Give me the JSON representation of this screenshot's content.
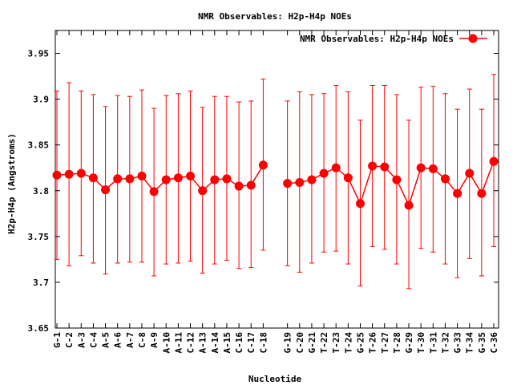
{
  "chart_data": {
    "type": "line",
    "title": "NMR Observables: H2p-H4p NOEs",
    "xlabel": "Nucleotide",
    "ylabel": "H2p-H4p (Angstroms)",
    "ylim": [
      3.65,
      3.975
    ],
    "yticks": [
      "3.65",
      "3.7",
      "3.75",
      "3.8",
      "3.85",
      "3.9",
      "3.95"
    ],
    "grid": false,
    "legend": "top-right",
    "series": [
      {
        "name": "NMR Observables: H2p-H4p NOEs",
        "color": "#ff0000",
        "segments": [
          [
            {
              "label": "G-1",
              "y": 3.817,
              "err_low": 3.725,
              "err_high": 3.909
            },
            {
              "label": "C-2",
              "y": 3.818,
              "err_low": 3.718,
              "err_high": 3.918
            },
            {
              "label": "A-3",
              "y": 3.819,
              "err_low": 3.729,
              "err_high": 3.909
            },
            {
              "label": "C-4",
              "y": 3.814,
              "err_low": 3.721,
              "err_high": 3.905
            },
            {
              "label": "A-5",
              "y": 3.801,
              "err_low": 3.709,
              "err_high": 3.892
            },
            {
              "label": "A-6",
              "y": 3.813,
              "err_low": 3.721,
              "err_high": 3.904
            },
            {
              "label": "A-7",
              "y": 3.813,
              "err_low": 3.722,
              "err_high": 3.903
            },
            {
              "label": "C-8",
              "y": 3.816,
              "err_low": 3.722,
              "err_high": 3.91
            },
            {
              "label": "A-9",
              "y": 3.799,
              "err_low": 3.707,
              "err_high": 3.89
            },
            {
              "label": "A-10",
              "y": 3.812,
              "err_low": 3.72,
              "err_high": 3.904
            },
            {
              "label": "A-11",
              "y": 3.814,
              "err_low": 3.721,
              "err_high": 3.906
            },
            {
              "label": "C-12",
              "y": 3.816,
              "err_low": 3.723,
              "err_high": 3.909
            },
            {
              "label": "A-13",
              "y": 3.8,
              "err_low": 3.71,
              "err_high": 3.891
            },
            {
              "label": "A-14",
              "y": 3.812,
              "err_low": 3.72,
              "err_high": 3.903
            },
            {
              "label": "A-15",
              "y": 3.813,
              "err_low": 3.724,
              "err_high": 3.903
            },
            {
              "label": "C-16",
              "y": 3.805,
              "err_low": 3.715,
              "err_high": 3.897
            },
            {
              "label": "C-17",
              "y": 3.806,
              "err_low": 3.716,
              "err_high": 3.898
            },
            {
              "label": "C-18",
              "y": 3.828,
              "err_low": 3.735,
              "err_high": 3.922
            }
          ],
          [
            {
              "label": "G-19",
              "y": 3.808,
              "err_low": 3.718,
              "err_high": 3.898
            },
            {
              "label": "C-20",
              "y": 3.809,
              "err_low": 3.711,
              "err_high": 3.908
            },
            {
              "label": "G-21",
              "y": 3.812,
              "err_low": 3.721,
              "err_high": 3.905
            },
            {
              "label": "T-22",
              "y": 3.819,
              "err_low": 3.733,
              "err_high": 3.906
            },
            {
              "label": "T-23",
              "y": 3.825,
              "err_low": 3.734,
              "err_high": 3.915
            },
            {
              "label": "T-24",
              "y": 3.814,
              "err_low": 3.72,
              "err_high": 3.908
            },
            {
              "label": "G-25",
              "y": 3.786,
              "err_low": 3.696,
              "err_high": 3.877
            },
            {
              "label": "T-26",
              "y": 3.827,
              "err_low": 3.739,
              "err_high": 3.915
            },
            {
              "label": "T-27",
              "y": 3.826,
              "err_low": 3.736,
              "err_high": 3.915
            },
            {
              "label": "T-28",
              "y": 3.812,
              "err_low": 3.72,
              "err_high": 3.905
            },
            {
              "label": "G-29",
              "y": 3.784,
              "err_low": 3.693,
              "err_high": 3.877
            },
            {
              "label": "T-30",
              "y": 3.825,
              "err_low": 3.737,
              "err_high": 3.913
            },
            {
              "label": "T-31",
              "y": 3.824,
              "err_low": 3.733,
              "err_high": 3.914
            },
            {
              "label": "T-32",
              "y": 3.813,
              "err_low": 3.72,
              "err_high": 3.906
            },
            {
              "label": "G-33",
              "y": 3.797,
              "err_low": 3.705,
              "err_high": 3.889
            },
            {
              "label": "T-34",
              "y": 3.819,
              "err_low": 3.726,
              "err_high": 3.911
            },
            {
              "label": "G-35",
              "y": 3.797,
              "err_low": 3.707,
              "err_high": 3.889
            },
            {
              "label": "C-36",
              "y": 3.832,
              "err_low": 3.739,
              "err_high": 3.927
            }
          ]
        ]
      }
    ]
  }
}
